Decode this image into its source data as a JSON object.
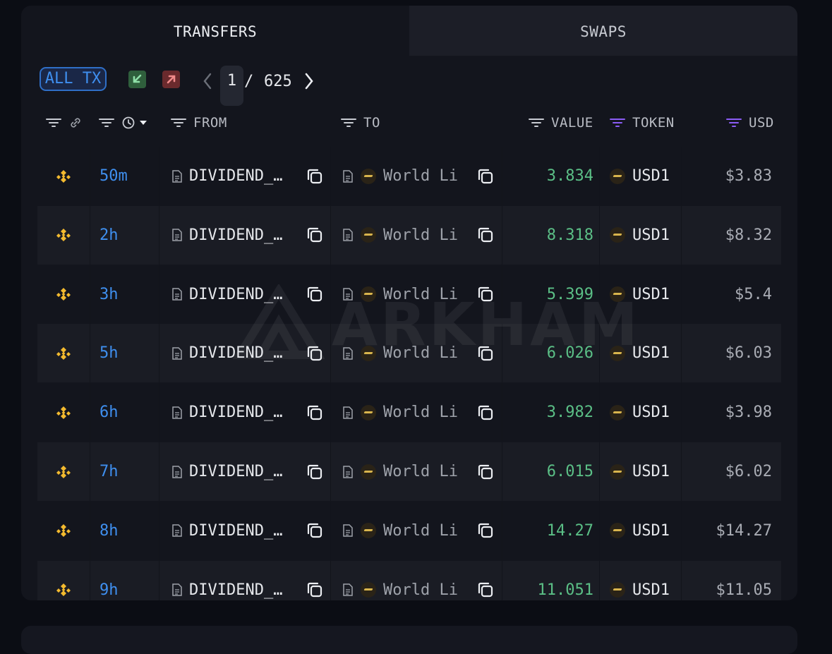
{
  "tabs": {
    "transfers": "TRANSFERS",
    "swaps": "SWAPS"
  },
  "toolbar": {
    "all_tx": "ALL TX",
    "incoming_icon": "incoming-arrow-icon",
    "outgoing_icon": "outgoing-arrow-icon",
    "page_current": "1",
    "page_separator": "/",
    "page_total": "625"
  },
  "columns": {
    "from": "FROM",
    "to": "TO",
    "value": "VALUE",
    "token": "TOKEN",
    "usd": "USD"
  },
  "colors": {
    "accent_blue": "#3f8fef",
    "value_green": "#5bbf86",
    "filter_purple": "#8b5cf6",
    "bnb_yellow": "#f3ba2f"
  },
  "rows": [
    {
      "time": "50m",
      "from": "DIVIDEND_…",
      "to": "World Li",
      "value": "3.834",
      "token": "USD1",
      "usd": "$3.83"
    },
    {
      "time": "2h",
      "from": "DIVIDEND_…",
      "to": "World Li",
      "value": "8.318",
      "token": "USD1",
      "usd": "$8.32"
    },
    {
      "time": "3h",
      "from": "DIVIDEND_…",
      "to": "World Li",
      "value": "5.399",
      "token": "USD1",
      "usd": "$5.4"
    },
    {
      "time": "5h",
      "from": "DIVIDEND_…",
      "to": "World Li",
      "value": "6.026",
      "token": "USD1",
      "usd": "$6.03"
    },
    {
      "time": "6h",
      "from": "DIVIDEND_…",
      "to": "World Li",
      "value": "3.982",
      "token": "USD1",
      "usd": "$3.98"
    },
    {
      "time": "7h",
      "from": "DIVIDEND_…",
      "to": "World Li",
      "value": "6.015",
      "token": "USD1",
      "usd": "$6.02"
    },
    {
      "time": "8h",
      "from": "DIVIDEND_…",
      "to": "World Li",
      "value": "14.27",
      "token": "USD1",
      "usd": "$14.27"
    },
    {
      "time": "9h",
      "from": "DIVIDEND_…",
      "to": "World Li",
      "value": "11.051",
      "token": "USD1",
      "usd": "$11.05"
    }
  ],
  "watermark": "ARKHAM"
}
